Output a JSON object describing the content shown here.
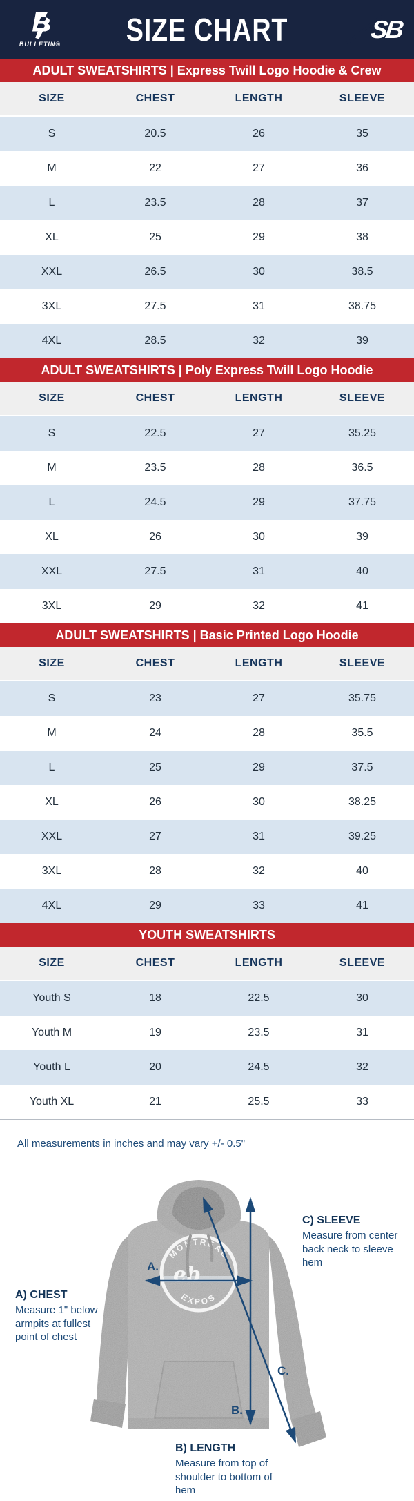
{
  "header": {
    "title": "SIZE CHART",
    "left_logo_text": "BULLETIN®",
    "right_logo_mark": "SB"
  },
  "columns": [
    "SIZE",
    "CHEST",
    "LENGTH",
    "SLEEVE"
  ],
  "tables": [
    {
      "banner": "ADULT SWEATSHIRTS | Express Twill Logo Hoodie & Crew",
      "rows": [
        [
          "S",
          "20.5",
          "26",
          "35"
        ],
        [
          "M",
          "22",
          "27",
          "36"
        ],
        [
          "L",
          "23.5",
          "28",
          "37"
        ],
        [
          "XL",
          "25",
          "29",
          "38"
        ],
        [
          "XXL",
          "26.5",
          "30",
          "38.5"
        ],
        [
          "3XL",
          "27.5",
          "31",
          "38.75"
        ],
        [
          "4XL",
          "28.5",
          "32",
          "39"
        ]
      ]
    },
    {
      "banner": "ADULT SWEATSHIRTS | Poly Express Twill Logo Hoodie",
      "rows": [
        [
          "S",
          "22.5",
          "27",
          "35.25"
        ],
        [
          "M",
          "23.5",
          "28",
          "36.5"
        ],
        [
          "L",
          "24.5",
          "29",
          "37.75"
        ],
        [
          "XL",
          "26",
          "30",
          "39"
        ],
        [
          "XXL",
          "27.5",
          "31",
          "40"
        ],
        [
          "3XL",
          "29",
          "32",
          "41"
        ]
      ]
    },
    {
      "banner": "ADULT SWEATSHIRTS | Basic Printed Logo Hoodie",
      "rows": [
        [
          "S",
          "23",
          "27",
          "35.75"
        ],
        [
          "M",
          "24",
          "28",
          "35.5"
        ],
        [
          "L",
          "25",
          "29",
          "37.5"
        ],
        [
          "XL",
          "26",
          "30",
          "38.25"
        ],
        [
          "XXL",
          "27",
          "31",
          "39.25"
        ],
        [
          "3XL",
          "28",
          "32",
          "40"
        ],
        [
          "4XL",
          "29",
          "33",
          "41"
        ]
      ]
    },
    {
      "banner": "YOUTH SWEATSHIRTS",
      "rows": [
        [
          "Youth S",
          "18",
          "22.5",
          "30"
        ],
        [
          "Youth M",
          "19",
          "23.5",
          "31"
        ],
        [
          "Youth L",
          "20",
          "24.5",
          "32"
        ],
        [
          "Youth XL",
          "21",
          "25.5",
          "33"
        ]
      ]
    }
  ],
  "note": "All measurements in inches and may vary +/- 0.5\"",
  "diagram": {
    "chest_title": "A) CHEST",
    "chest_desc": "Measure 1\" below armpits at fullest point of chest",
    "length_title": "B) LENGTH",
    "length_desc": "Measure from top of shoulder to bottom of hem",
    "sleeve_title": "C) SLEEVE",
    "sleeve_desc": "Measure from center back neck to sleeve hem",
    "marker_a": "A.",
    "marker_b": "B.",
    "marker_c": "C.",
    "hoodie_logo_top": "MONTREAL",
    "hoodie_logo_bottom": "EXPOS"
  },
  "colors": {
    "navy": "#182440",
    "red": "#c1272d",
    "row_blue": "#d8e4f0",
    "header_gray": "#efefef",
    "heading_navy": "#16355b",
    "arrow_navy": "#1c4977"
  }
}
